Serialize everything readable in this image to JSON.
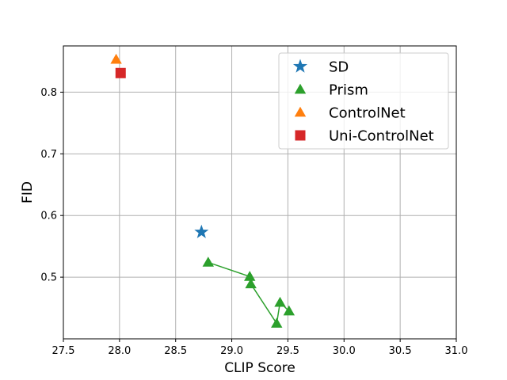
{
  "chart_data": {
    "type": "scatter",
    "title": "",
    "xlabel": "CLIP Score",
    "ylabel": "FID",
    "xlim": [
      27.5,
      31.0
    ],
    "ylim": [
      0.4,
      0.875
    ],
    "xticks": [
      "27.5",
      "28.0",
      "28.5",
      "29.0",
      "29.5",
      "30.0",
      "30.5",
      "31.0"
    ],
    "yticks": [
      "0.5",
      "0.6",
      "0.7",
      "0.8"
    ],
    "grid": true,
    "legend_position": "top-right",
    "series": [
      {
        "name": "SD",
        "marker": "star",
        "color": "#1f77b4",
        "connected": false,
        "points": [
          [
            28.73,
            0.573
          ]
        ]
      },
      {
        "name": "Prism",
        "marker": "triangle",
        "color": "#2ca02c",
        "connected": true,
        "points": [
          [
            28.79,
            0.524
          ],
          [
            29.16,
            0.501
          ],
          [
            29.17,
            0.489
          ],
          [
            29.4,
            0.425
          ],
          [
            29.43,
            0.459
          ],
          [
            29.51,
            0.445
          ]
        ]
      },
      {
        "name": "ControlNet",
        "marker": "triangle",
        "color": "#ff7f0e",
        "connected": false,
        "points": [
          [
            27.97,
            0.853
          ]
        ]
      },
      {
        "name": "Uni-ControlNet",
        "marker": "square",
        "color": "#d62728",
        "connected": false,
        "points": [
          [
            28.01,
            0.831
          ]
        ]
      }
    ]
  }
}
